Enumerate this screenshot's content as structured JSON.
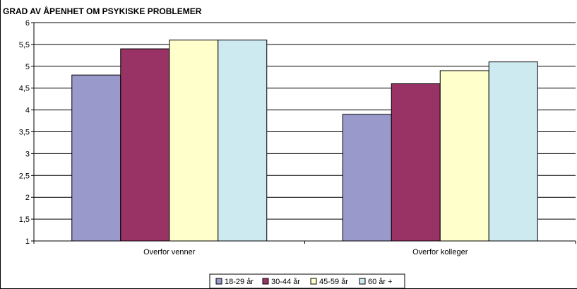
{
  "chart_data": {
    "type": "bar",
    "title": "GRAD AV ÅPENHET OM PSYKISKE PROBLEMER",
    "xlabel": "",
    "ylabel": "",
    "categories": [
      "Overfor venner",
      "Overfor kolleger"
    ],
    "series": [
      {
        "name": "18-29 år",
        "color": "#9999cc",
        "values": [
          4.8,
          3.9
        ]
      },
      {
        "name": "30-44 år",
        "color": "#993366",
        "values": [
          5.4,
          4.6
        ]
      },
      {
        "name": "45-59 år",
        "color": "#ffffcc",
        "values": [
          5.6,
          4.9
        ]
      },
      {
        "name": "60 år +",
        "color": "#cceaf0",
        "values": [
          5.6,
          5.1
        ]
      }
    ],
    "ylim": [
      1,
      6
    ],
    "yticks": [
      "1",
      "1,5",
      "2",
      "2,5",
      "3",
      "3,5",
      "4",
      "4,5",
      "5",
      "5,5",
      "6"
    ],
    "grid": true,
    "legend": "bottom"
  }
}
